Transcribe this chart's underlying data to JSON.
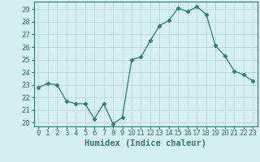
{
  "x": [
    0,
    1,
    2,
    3,
    4,
    5,
    6,
    7,
    8,
    9,
    10,
    11,
    12,
    13,
    14,
    15,
    16,
    17,
    18,
    19,
    20,
    21,
    22,
    23
  ],
  "y": [
    22.8,
    23.1,
    23.0,
    21.7,
    21.5,
    21.5,
    20.3,
    21.5,
    19.9,
    20.4,
    25.0,
    25.2,
    26.5,
    27.7,
    28.1,
    29.1,
    28.8,
    29.2,
    28.6,
    26.1,
    25.3,
    24.1,
    23.8,
    23.3
  ],
  "line_color": "#2e7d6e",
  "marker": "D",
  "marker_size": 2.5,
  "bg_color": "#d6f0f0",
  "grid_color": "#c0d8d8",
  "xlabel": "Humidex (Indice chaleur)",
  "ylim": [
    19.7,
    29.6
  ],
  "xlim": [
    -0.5,
    23.5
  ],
  "yticks": [
    20,
    21,
    22,
    23,
    24,
    25,
    26,
    27,
    28,
    29
  ],
  "xticks": [
    0,
    1,
    2,
    3,
    4,
    5,
    6,
    7,
    8,
    9,
    10,
    11,
    12,
    13,
    14,
    15,
    16,
    17,
    18,
    19,
    20,
    21,
    22,
    23
  ],
  "tick_color": "#2e7d6e",
  "label_fontsize": 6.5,
  "xlabel_fontsize": 7.5,
  "spine_color": "#2e7d6e"
}
